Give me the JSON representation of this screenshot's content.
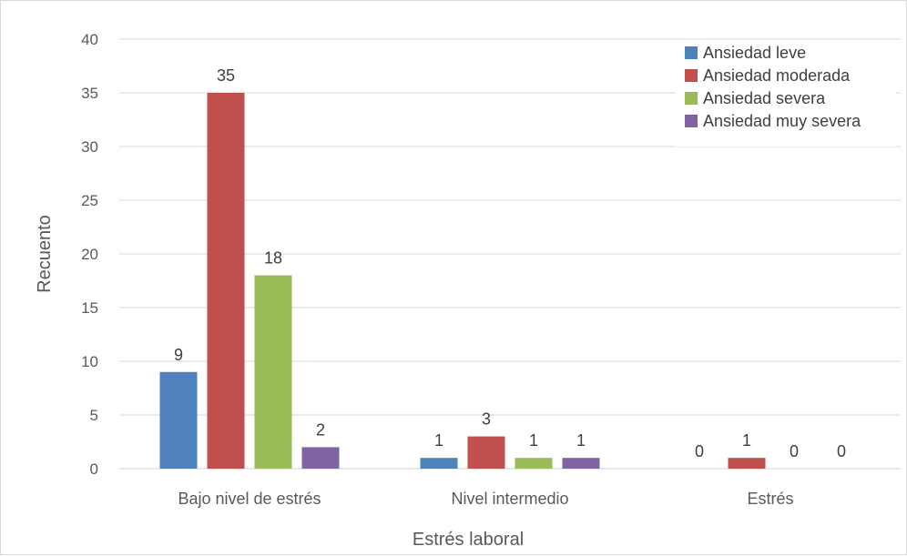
{
  "chart_data": {
    "type": "bar",
    "xlabel": "Estrés laboral",
    "ylabel": "Recuento",
    "ylim": [
      0,
      40
    ],
    "yticks": [
      0,
      5,
      10,
      15,
      20,
      25,
      30,
      35,
      40
    ],
    "grid": true,
    "legend_position": "top-right",
    "categories": [
      "Bajo nivel de estrés",
      "Nivel intermedio",
      "Estrés"
    ],
    "series": [
      {
        "name": "Ansiedad leve",
        "color": "#4f81bd",
        "values": [
          9,
          1,
          0
        ]
      },
      {
        "name": "Ansiedad moderada",
        "color": "#c0504d",
        "values": [
          35,
          3,
          1
        ]
      },
      {
        "name": "Ansiedad severa",
        "color": "#9bbb59",
        "values": [
          18,
          1,
          0
        ]
      },
      {
        "name": "Ansiedad muy severa",
        "color": "#8064a2",
        "values": [
          2,
          1,
          0
        ]
      }
    ]
  }
}
